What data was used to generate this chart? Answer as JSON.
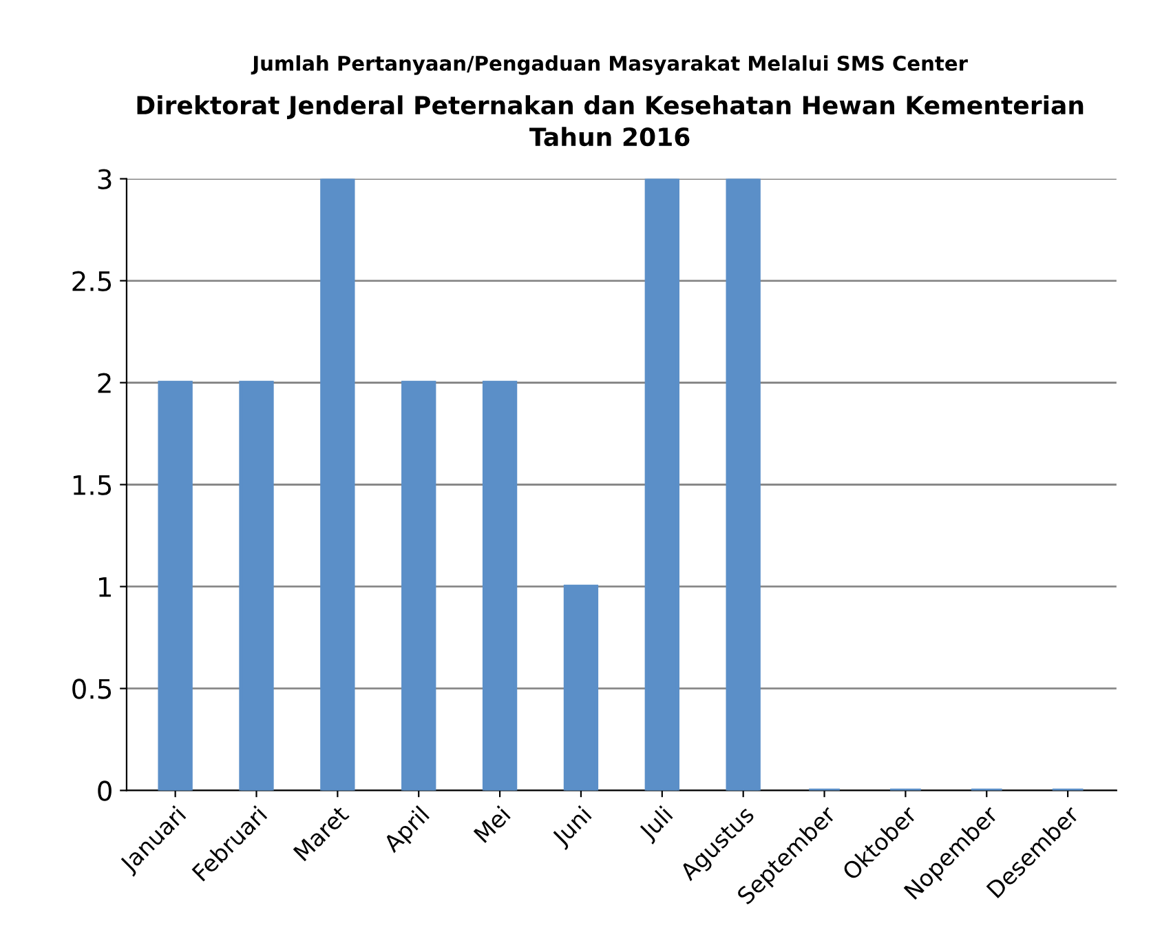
{
  "chart_data": {
    "type": "bar",
    "title": "Jumlah Pertanyaan/Pengaduan Masyarakat Melalui SMS Center",
    "subtitle": "Direktorat Jenderal Peternakan dan Kesehatan Hewan Kementerian\nTahun 2016",
    "categories": [
      "Januari",
      "Februari",
      "Maret",
      "April",
      "Mei",
      "Juni",
      "Juli",
      "Agustus",
      "September",
      "Oktober",
      "Nopember",
      "Desember"
    ],
    "values": [
      2,
      2,
      3,
      2,
      2,
      1,
      3,
      3,
      0,
      0,
      0,
      0
    ],
    "color": "#5b8fc8",
    "ylim": [
      0,
      3
    ],
    "yticks": [
      0,
      0.5,
      1,
      1.5,
      2,
      2.5,
      3
    ],
    "grid": "y",
    "legend": false
  }
}
